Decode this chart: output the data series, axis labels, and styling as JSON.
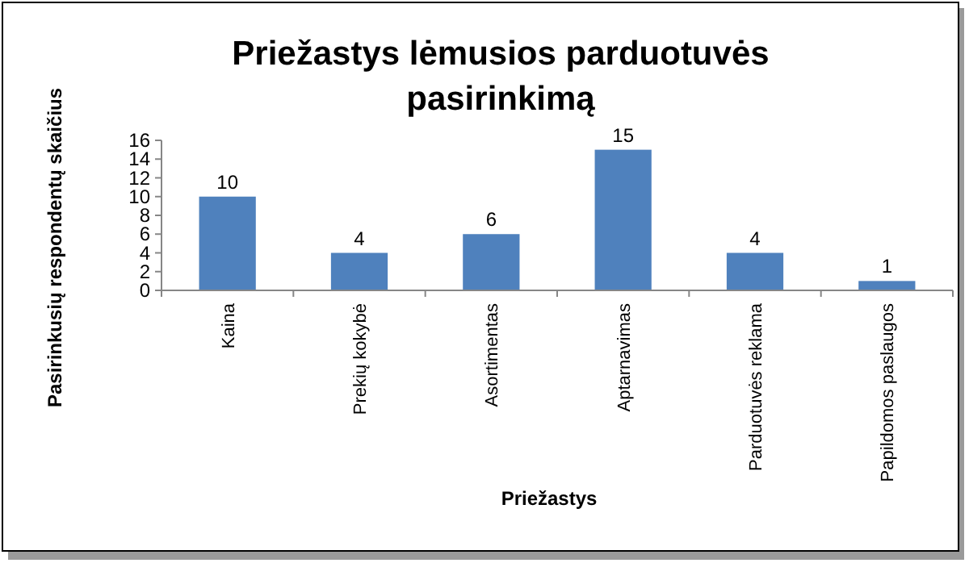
{
  "chart_data": {
    "type": "bar",
    "title": "Priežastys lėmusios parduotuvės pasirinkimą",
    "xlabel": "Priežastys",
    "ylabel": "Pasirinkusių respondentų skaičius",
    "categories": [
      "Kaina",
      "Prekių kokybė",
      "Asortimentas",
      "Aptarnavimas",
      "Parduotuvės reklama",
      "Papildomos paslaugos"
    ],
    "values": [
      10,
      4,
      6,
      15,
      4,
      1
    ],
    "color": "#4f81bd",
    "ylim": [
      0,
      16
    ],
    "yticks": [
      0,
      2,
      4,
      6,
      8,
      10,
      12,
      14,
      16
    ],
    "data_labels": true,
    "grid": false
  }
}
